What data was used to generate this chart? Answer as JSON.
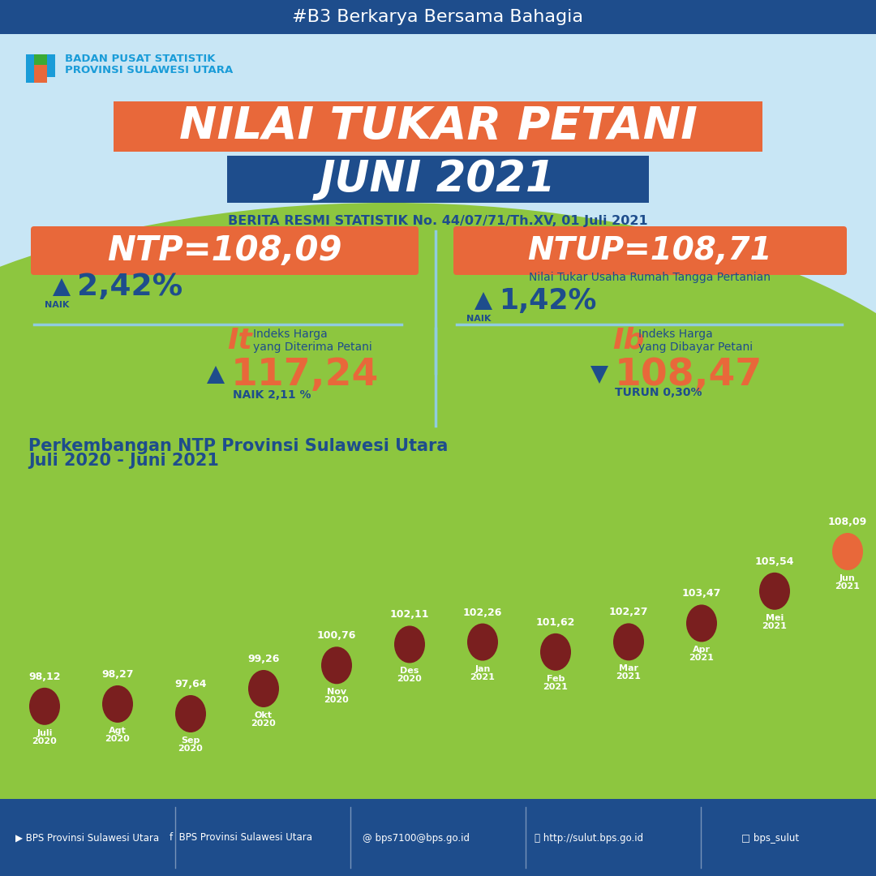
{
  "header_bg": "#1e4d8c",
  "header_text": "#B3 Berkarya Bersama Bahagia",
  "body_bg": "#c8e6f5",
  "title1": "NILAI TUKAR PETANI",
  "title2": "JUNI 2021",
  "subtitle": "BERITA RESMI STATISTIK No. 44/07/71/Th.XV, 01 Juli 2021",
  "ntp_value": "NTP=108,09",
  "ntp_change": "2,42%",
  "ntp_label": "NAIK",
  "ntup_value": "NTUP=108,71",
  "ntup_subtitle": "Nilai Tukar Usaha Rumah Tangga Pertanian",
  "ntup_change": "1,42%",
  "ntup_label": "NAIK",
  "it_label": "It",
  "it_desc1": "Indeks Harga",
  "it_desc2": "yang Diterima Petani",
  "it_value": "117,24",
  "it_change": "NAIK 2,11 %",
  "ib_label": "Ib",
  "ib_desc1": "Indeks Harga",
  "ib_desc2": "yang Dibayar Petani",
  "ib_value": "108,47",
  "ib_change": "TURUN 0,30%",
  "chart_title1": "Perkembangan NTP Provinsi Sulawesi Utara",
  "chart_title2": "Juli 2020 - Juni 2021",
  "months": [
    "Juli 2020",
    "Agt 2020",
    "Sep 2020",
    "Okt 2020",
    "Nov 2020",
    "Des 2020",
    "Jan 2021",
    "Feb 2021",
    "Mar 2021",
    "Apr 2021",
    "Mei 2021",
    "Jun 2021"
  ],
  "values": [
    98.12,
    98.27,
    97.64,
    99.26,
    100.76,
    102.11,
    102.26,
    101.62,
    102.27,
    103.47,
    105.54,
    108.09
  ],
  "dot_color": "#7a1f1f",
  "dot_color_last": "#e8683a",
  "orange_color": "#e8683a",
  "dark_blue": "#1e4d8c",
  "title_bg": "#e8683a",
  "title_text": "#ffffff",
  "footer_bg": "#1e4d8c",
  "footer_text": "#ffffff",
  "green_bg": "#8dc63f",
  "green_dark": "#6aaa1e",
  "separator_color": "#90cce0",
  "light_blue_line": "#7ab8d4"
}
